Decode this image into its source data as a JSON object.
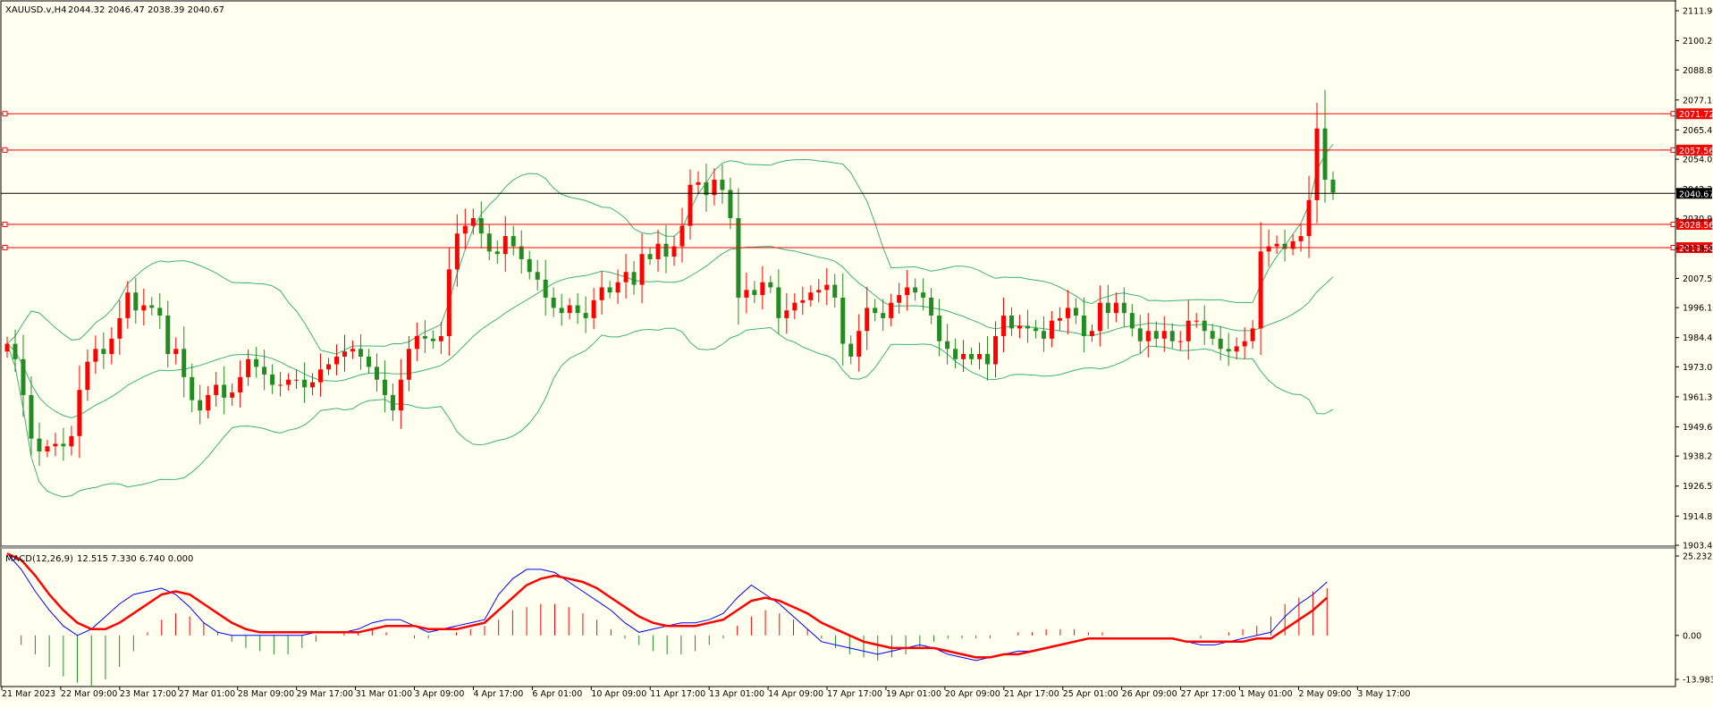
{
  "header": {
    "symbol_text": "XAUUSD.v,H4",
    "ohlc_text": "2044.32 2046.47 2038.39 2040.67"
  },
  "macd_header": {
    "label": "MACD(12,26,9)",
    "values_text": "12.515 7.330 6.740 0.000"
  },
  "colors": {
    "background": "#fffff0",
    "bull_candle": "#ff0000",
    "bear_candle": "#228b22",
    "bollinger": "#3cb371",
    "macd_line": "#0000ff",
    "signal_line": "#ff0000",
    "hline": "#ff0000",
    "price_line": "#000000"
  },
  "chart_data": [
    {
      "type": "candlestick",
      "symbol": "XAUUSD.v",
      "timeframe": "H4",
      "ylim": [
        1903.4,
        2111.9
      ],
      "y_ticks": [
        "2111.90",
        "2100.20",
        "2088.80",
        "2077.10",
        "2065.40",
        "2054.00",
        "2042.30",
        "2030.90",
        "2019.20",
        "2007.50",
        "1996.10",
        "1984.40",
        "1973.00",
        "1961.30",
        "1949.60",
        "1938.20",
        "1926.50",
        "1914.80",
        "1903.40"
      ],
      "x_ticks": [
        "21 Mar 2023",
        "22 Mar 09:00",
        "23 Mar 17:00",
        "27 Mar 01:00",
        "28 Mar 09:00",
        "29 Mar 17:00",
        "31 Mar 01:00",
        "3 Apr 09:00",
        "4 Apr 17:00",
        "6 Apr 01:00",
        "10 Apr 09:00",
        "11 Apr 17:00",
        "13 Apr 01:00",
        "14 Apr 09:00",
        "17 Apr 17:00",
        "19 Apr 01:00",
        "20 Apr 09:00",
        "21 Apr 17:00",
        "25 Apr 01:00",
        "26 Apr 09:00",
        "27 Apr 17:00",
        "1 May 01:00",
        "2 May 09:00",
        "3 May 17:00"
      ],
      "close_series": [
        1982,
        1976,
        1962,
        1945,
        1940,
        1942,
        1943,
        1942,
        1946,
        1964,
        1975,
        1980,
        1978,
        1984,
        1992,
        2002,
        1995,
        1997,
        1996,
        1993,
        1978,
        1980,
        1969,
        1960,
        1956,
        1962,
        1966,
        1961,
        1963,
        1969,
        1976,
        1973,
        1970,
        1966,
        1966,
        1968,
        1968,
        1965,
        1967,
        1972,
        1974,
        1977,
        1979,
        1980,
        1977,
        1973,
        1968,
        1962,
        1956,
        1968,
        1980,
        1985,
        1984,
        1983,
        1985,
        2011,
        2025,
        2028,
        2031,
        2025,
        2018,
        2017,
        2024,
        2020,
        2015,
        2010,
        2007,
        2000,
        1996,
        1994,
        1997,
        1994,
        1992,
        1999,
        2004,
        2002,
        2006,
        2010,
        2005,
        2017,
        2015,
        2021,
        2016,
        2020,
        2028,
        2044,
        2045,
        2040,
        2046,
        2042,
        2031,
        2000,
        2003,
        2001,
        2006,
        2004,
        1992,
        1995,
        1998,
        1999,
        2002,
        2003,
        2005,
        2000,
        1982,
        1977,
        1987,
        1996,
        1994,
        1992,
        1998,
        2001,
        2004,
        2002,
        2000,
        1993,
        1983,
        1980,
        1976,
        1978,
        1976,
        1978,
        1974,
        1985,
        1993,
        1988,
        1989,
        1988,
        1987,
        1984,
        1991,
        1992,
        1996,
        1993,
        1985,
        1987,
        1998,
        1994,
        1998,
        1994,
        1988,
        1983,
        1987,
        1984,
        1987,
        1983,
        1983,
        1991,
        1991,
        1987,
        1984,
        1980,
        1979,
        1981,
        1983,
        1988,
        2018,
        2020,
        2021,
        2019,
        2022,
        2024,
        2038,
        2066,
        2046,
        2041
      ],
      "bollinger": {
        "period": 20,
        "deviations": 2
      },
      "horizontal_lines": [
        {
          "price": 2071.72,
          "label": "2071.72"
        },
        {
          "price": 2057.56,
          "label": "2057.56"
        },
        {
          "price": 2028.56,
          "label": "2028.56"
        },
        {
          "price": 2019.5,
          "label": "2019.50"
        }
      ],
      "current_price": {
        "price": 2040.67,
        "label": "2040.67"
      }
    },
    {
      "type": "macd",
      "params": "12,26,9",
      "ylim": [
        -13.983,
        25.232
      ],
      "y_ticks": [
        "25.232",
        "0.00",
        "-13.983"
      ],
      "macd_series": [
        26,
        21,
        14,
        8,
        3,
        0,
        2,
        6,
        10,
        13,
        14,
        15,
        13,
        9,
        4,
        1,
        0,
        0,
        0,
        0,
        0,
        0,
        1,
        1,
        1,
        2,
        4,
        5,
        5,
        3,
        1,
        2,
        3,
        4,
        5,
        13,
        18,
        21,
        21,
        20,
        17,
        14,
        11,
        8,
        4,
        1,
        2,
        3,
        4,
        4,
        5,
        7,
        12,
        16,
        13,
        10,
        6,
        2,
        -2,
        -3,
        -4,
        -5,
        -6,
        -5,
        -4,
        -3,
        -4,
        -6,
        -7,
        -8,
        -7,
        -6,
        -5,
        -5,
        -4,
        -3,
        -2,
        -1,
        -1,
        -1,
        -1,
        -1,
        -1,
        -1,
        -2,
        -3,
        -3,
        -2,
        -1,
        0,
        1,
        6,
        10,
        13,
        17
      ],
      "signal_series": [
        26,
        24,
        19,
        13,
        8,
        4,
        2,
        2,
        4,
        7,
        10,
        13,
        14,
        13,
        10,
        7,
        4,
        2,
        1,
        1,
        1,
        1,
        1,
        1,
        1,
        1,
        2,
        3,
        3,
        3,
        2,
        2,
        2,
        3,
        4,
        8,
        12,
        16,
        18,
        19,
        18,
        17,
        15,
        12,
        9,
        6,
        4,
        3,
        3,
        3,
        4,
        5,
        8,
        11,
        12,
        11,
        9,
        7,
        4,
        2,
        0,
        -2,
        -3,
        -4,
        -4,
        -4,
        -4,
        -5,
        -6,
        -7,
        -7,
        -6,
        -6,
        -5,
        -4,
        -3,
        -2,
        -1,
        -1,
        -1,
        -1,
        -1,
        -1,
        -1,
        -2,
        -2,
        -2,
        -2,
        -2,
        -1,
        -1,
        2,
        5,
        8,
        12
      ],
      "histogram_series": [
        0,
        -3,
        -6,
        -10,
        -13,
        -15,
        -16,
        -14,
        -10,
        -5,
        1,
        5,
        7,
        6,
        4,
        1,
        -2,
        -4,
        -5,
        -6,
        -6,
        -4,
        -2,
        0,
        1,
        1,
        2,
        1,
        0,
        -1,
        -1,
        0,
        1,
        2,
        3,
        5,
        8,
        9,
        10,
        10,
        9,
        7,
        5,
        2,
        -1,
        -3,
        -5,
        -6,
        -6,
        -5,
        -3,
        -1,
        3,
        6,
        8,
        7,
        5,
        2,
        -1,
        -4,
        -6,
        -7,
        -8,
        -7,
        -6,
        -4,
        -2,
        -1,
        -1,
        -1,
        -1,
        0,
        1,
        1,
        2,
        2,
        2,
        1,
        1,
        0,
        0,
        0,
        0,
        0,
        0,
        -1,
        0,
        1,
        2,
        3,
        6,
        10,
        12,
        14,
        15
      ]
    }
  ]
}
